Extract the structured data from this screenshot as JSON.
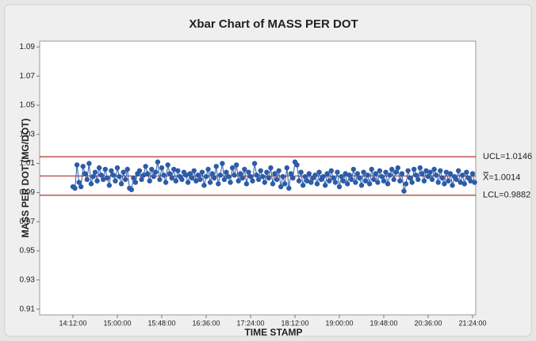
{
  "chart_data": {
    "type": "control",
    "title": "Xbar Chart of MASS PER DOT",
    "x_label": "TIME STAMP",
    "y_label": "MASS PER DOT (MG/DOT)",
    "color": "#2c5ca8",
    "limit_color": "#b0302a",
    "ylim": [
      0.906,
      1.094
    ],
    "yticks": [
      0.91,
      0.93,
      0.95,
      0.97,
      0.99,
      1.01,
      1.03,
      1.05,
      1.07,
      1.09
    ],
    "control_limits": [
      {
        "label": "UCL=1.0146",
        "value": 1.0146
      },
      {
        "label": "X̿=1.0014",
        "value": 1.0014
      },
      {
        "label": "LCL=0.9882",
        "value": 0.9882
      }
    ],
    "categories": [
      "14:12:00",
      null,
      null,
      null,
      null,
      null,
      null,
      null,
      null,
      null,
      null,
      null,
      null,
      null,
      null,
      null,
      null,
      null,
      null,
      null,
      null,
      null,
      "15:00:00",
      null,
      null,
      null,
      null,
      null,
      null,
      null,
      null,
      null,
      null,
      null,
      null,
      null,
      null,
      null,
      null,
      null,
      null,
      null,
      null,
      null,
      "15:48:00",
      null,
      null,
      null,
      null,
      null,
      null,
      null,
      null,
      null,
      null,
      null,
      null,
      null,
      null,
      null,
      null,
      null,
      null,
      null,
      null,
      null,
      "16:36:00",
      null,
      null,
      null,
      null,
      null,
      null,
      null,
      null,
      null,
      null,
      null,
      null,
      null,
      null,
      null,
      null,
      null,
      null,
      null,
      null,
      null,
      "17:24:00",
      null,
      null,
      null,
      null,
      null,
      null,
      null,
      null,
      null,
      null,
      null,
      null,
      null,
      null,
      null,
      null,
      null,
      null,
      null,
      null,
      null,
      "18:12:00",
      null,
      null,
      null,
      null,
      null,
      null,
      null,
      null,
      null,
      null,
      null,
      null,
      null,
      null,
      null,
      null,
      null,
      null,
      null,
      null,
      null,
      "19:00:00",
      null,
      null,
      null,
      null,
      null,
      null,
      null,
      null,
      null,
      null,
      null,
      null,
      null,
      null,
      null,
      null,
      null,
      null,
      null,
      null,
      null,
      "19:48:00",
      null,
      null,
      null,
      null,
      null,
      null,
      null,
      null,
      null,
      null,
      null,
      null,
      null,
      null,
      null,
      null,
      null,
      null,
      null,
      null,
      null,
      "20:36:00",
      null,
      null,
      null,
      null,
      null,
      null,
      null,
      null,
      null,
      null,
      null,
      null,
      null,
      null,
      null,
      null,
      null,
      null,
      null,
      null,
      null,
      "21:24:00",
      null
    ],
    "values": [
      0.994,
      0.993,
      1.009,
      0.997,
      0.994,
      1.008,
      1.003,
      0.999,
      1.01,
      0.996,
      1.001,
      1.004,
      0.998,
      1.007,
      1.002,
      0.999,
      1.006,
      1.0,
      0.995,
      1.005,
      1.002,
      0.998,
      1.007,
      1.001,
      0.996,
      1.004,
      0.999,
      1.006,
      0.993,
      0.992,
      1.0,
      0.997,
      1.003,
      1.005,
      0.999,
      1.002,
      1.008,
      1.003,
      0.998,
      1.006,
      1.001,
      1.004,
      1.011,
      0.999,
      1.007,
      1.002,
      0.997,
      1.009,
      1.003,
      1.0,
      1.006,
      0.998,
      1.005,
      1.001,
      0.999,
      1.004,
      1.002,
      0.997,
      1.003,
      1.0,
      1.005,
      0.998,
      1.002,
      0.999,
      1.004,
      0.995,
      1.001,
      1.006,
      0.997,
      1.003,
      1.0,
      1.008,
      0.996,
      1.002,
      1.01,
      0.999,
      1.004,
      1.001,
      0.997,
      1.007,
      1.002,
      1.009,
      0.998,
      1.003,
      1.0,
      1.006,
      0.996,
      1.004,
      1.001,
      0.998,
      1.01,
      1.002,
      0.999,
      1.005,
      1.001,
      0.997,
      1.004,
      1.0,
      1.007,
      0.996,
      1.003,
      0.999,
      1.005,
      0.994,
      1.001,
      0.996,
      1.007,
      0.993,
      1.003,
      1.0,
      1.011,
      1.009,
      0.998,
      1.004,
      0.995,
      1.001,
      0.998,
      1.003,
      0.997,
      1.0,
      1.002,
      0.996,
      1.004,
      0.999,
      1.001,
      0.995,
      1.003,
      0.998,
      1.005,
      1.0,
      0.997,
      1.004,
      0.994,
      1.001,
      0.998,
      1.003,
      0.996,
      1.002,
      0.999,
      1.006,
      0.997,
      1.003,
      1.0,
      0.995,
      1.004,
      0.998,
      1.002,
      0.996,
      1.006,
      0.999,
      1.003,
      0.997,
      1.005,
      1.001,
      0.998,
      1.004,
      0.996,
      1.002,
      1.006,
      0.999,
      1.004,
      1.007,
      0.998,
      1.003,
      0.991,
      0.996,
      1.005,
      1.0,
      0.997,
      1.006,
      1.002,
      0.999,
      1.007,
      1.003,
      0.998,
      1.005,
      1.001,
      1.004,
      0.999,
      1.006,
      1.002,
      0.997,
      1.005,
      1.0,
      0.996,
      1.004,
      0.998,
      1.003,
      0.995,
      1.001,
      0.999,
      1.005,
      0.997,
      1.002,
      0.996,
      1.004,
      1.0,
      0.998,
      1.003,
      0.997
    ]
  }
}
